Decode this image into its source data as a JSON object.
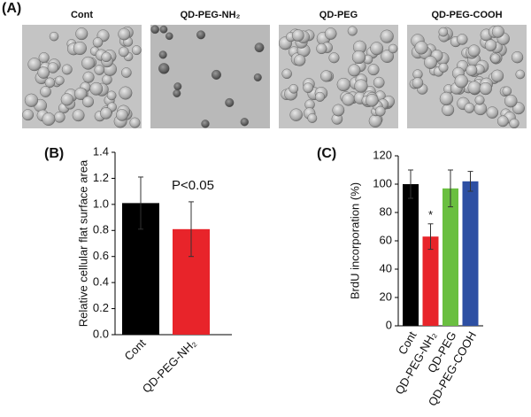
{
  "panel_labels": [
    "(A)",
    "(B)",
    "(C)"
  ],
  "images": [
    {
      "label": "Cont"
    },
    {
      "label": "QD-PEG-NH₂"
    },
    {
      "label": "QD-PEG"
    },
    {
      "label": "QD-PEG-COOH"
    }
  ],
  "chart_data": [
    {
      "type": "bar",
      "y_label": "Relative cellular flat surface area",
      "categories": [
        "Cont",
        "QD-PEG-NH₂"
      ],
      "values": [
        1.01,
        0.81
      ],
      "errors": [
        0.2,
        0.21
      ],
      "colors": [
        "#000000",
        "#e8242a"
      ],
      "ylim": [
        0,
        1.4
      ],
      "yticks": [
        {
          "value": 0,
          "label": "0.0"
        },
        0.2,
        0.4,
        0.6,
        0.8,
        {
          "value": 1,
          "label": "1.0"
        },
        1.2,
        1.4
      ],
      "annotation": "P<0.05"
    },
    {
      "type": "bar",
      "y_label": "BrdU incorporation (%)",
      "categories": [
        "Cont",
        "QD-PEG-NH₂",
        "QD-PEG",
        "QD-PEG-COOH"
      ],
      "values": [
        100,
        63,
        97,
        102
      ],
      "errors": [
        10,
        9,
        13,
        7
      ],
      "colors": [
        "#000000",
        "#e8242a",
        "#6abf40",
        "#2d4fa3"
      ],
      "ylim": [
        0,
        120
      ],
      "yticks": [
        0,
        20,
        40,
        60,
        80,
        100,
        120
      ],
      "annotation": "*"
    }
  ]
}
